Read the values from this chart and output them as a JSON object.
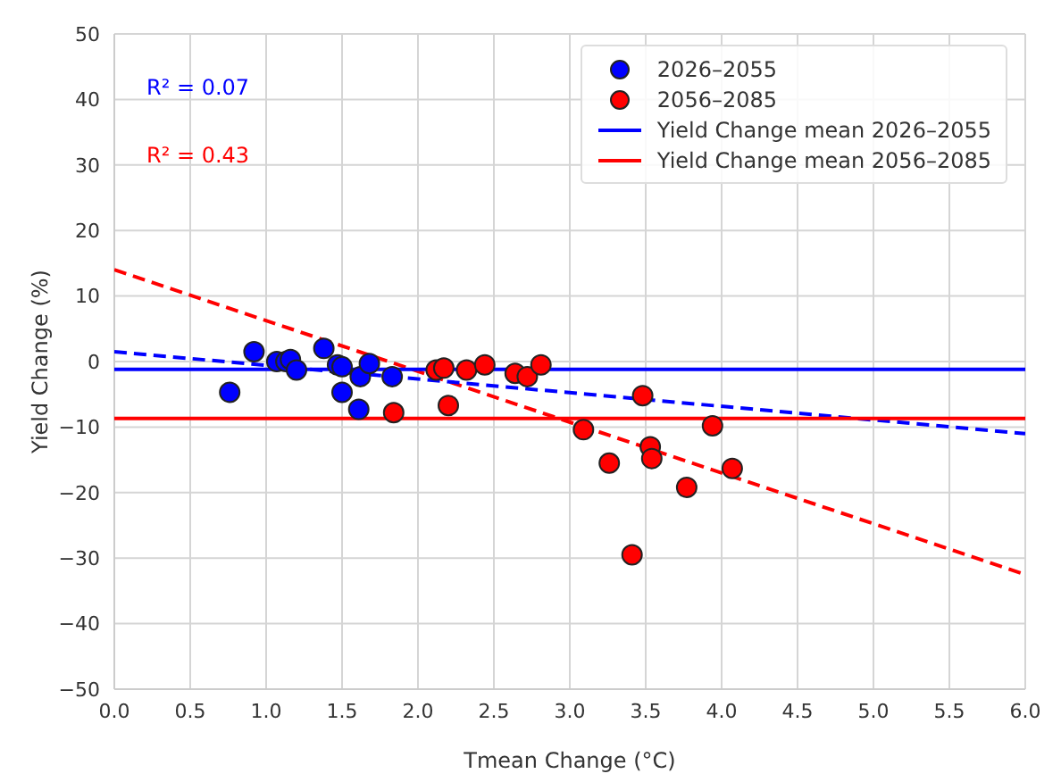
{
  "chart_data": {
    "type": "scatter",
    "xlabel": "Tmean Change (°C)",
    "ylabel": "Yield Change (%)",
    "xlim": [
      0,
      6
    ],
    "ylim": [
      -50,
      50
    ],
    "xticks": [
      {
        "value": 0,
        "label": "0.0"
      },
      {
        "value": 0.5,
        "label": "0.5"
      },
      {
        "value": 1,
        "label": "1.0"
      },
      {
        "value": 1.5,
        "label": "1.5"
      },
      {
        "value": 2,
        "label": "2.0"
      },
      {
        "value": 2.5,
        "label": "2.5"
      },
      {
        "value": 3,
        "label": "3.0"
      },
      {
        "value": 3.5,
        "label": "3.5"
      },
      {
        "value": 4,
        "label": "4.0"
      },
      {
        "value": 4.5,
        "label": "4.5"
      },
      {
        "value": 5,
        "label": "5.0"
      },
      {
        "value": 5.5,
        "label": "5.5"
      },
      {
        "value": 6,
        "label": "6.0"
      }
    ],
    "yticks": [
      -50,
      -40,
      -30,
      -20,
      -10,
      0,
      10,
      20,
      30,
      40,
      50
    ],
    "grid": true,
    "legend": "top right",
    "marker": "circle",
    "annotations": [
      "R² = 0.07",
      "R² = 0.43"
    ],
    "series": [
      {
        "name": "2026–2055",
        "type": "scatter",
        "color": "#0000ff",
        "x": [
          0.76,
          0.92,
          1.07,
          1.13,
          1.16,
          1.2,
          1.38,
          1.47,
          1.5,
          1.5,
          1.62,
          1.61,
          1.68,
          1.83
        ],
        "values": [
          -4.7,
          1.5,
          0,
          0,
          0.3,
          -1.3,
          2,
          -0.5,
          -0.8,
          -4.7,
          -2.3,
          -7.3,
          -0.3,
          -2.3
        ]
      },
      {
        "name": "2056–2085",
        "type": "scatter",
        "color": "#ff0000",
        "x": [
          1.84,
          2.12,
          2.17,
          2.2,
          2.32,
          2.44,
          2.64,
          2.72,
          2.81,
          3.09,
          3.26,
          3.41,
          3.48,
          3.53,
          3.54,
          3.77,
          3.94,
          4.07
        ],
        "values": [
          -7.8,
          -1.3,
          -1.0,
          -6.7,
          -1.3,
          -0.5,
          -1.8,
          -2.3,
          -0.5,
          -10.4,
          -15.5,
          -29.5,
          -5.2,
          -13,
          -14.8,
          -19.2,
          -9.8,
          -16.3
        ]
      },
      {
        "name": "Yield Change mean 2026–2055",
        "type": "line",
        "color": "#0000ff",
        "line_style": "solid",
        "marker": "none",
        "x": [
          0,
          6
        ],
        "values": [
          -1.2,
          -1.2
        ]
      },
      {
        "name": "Yield Change mean 2056–2085",
        "type": "line",
        "color": "#ff0000",
        "line_style": "solid",
        "marker": "none",
        "x": [
          0,
          6
        ],
        "values": [
          -8.7,
          -8.7
        ]
      },
      {
        "type": "line",
        "color": "#0000ff",
        "line_style": "dashed",
        "marker": "none",
        "x": [
          0,
          6
        ],
        "values": [
          1.5,
          -11
        ]
      },
      {
        "type": "line",
        "color": "#ff0000",
        "line_style": "dashed",
        "marker": "none",
        "x": [
          0,
          6
        ],
        "values": [
          14,
          -32.5
        ]
      }
    ]
  }
}
